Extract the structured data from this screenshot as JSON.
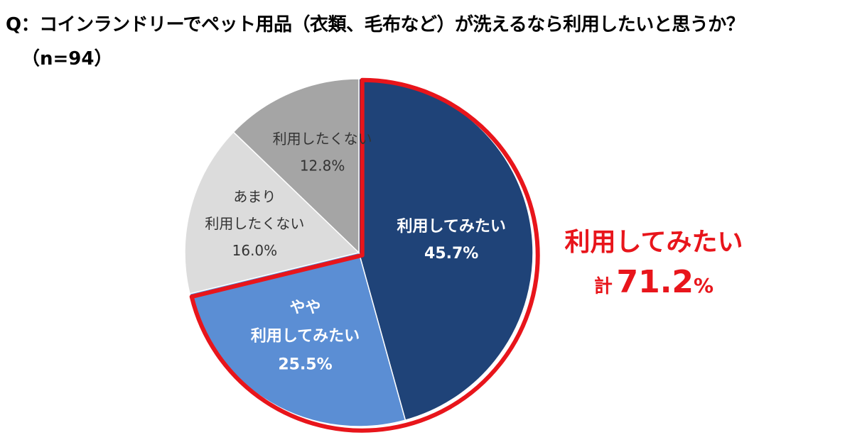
{
  "title": "Q：コインランドリーでペット用品（衣類、毛布など）が洗えるなら利用したいと思うか？",
  "subtitle": "（n=94）",
  "chart_data": {
    "type": "pie",
    "start_angle_deg": 0,
    "direction": "clockwise",
    "slices": [
      {
        "label_lines": [
          "利用してみたい"
        ],
        "value_text": "45.7%",
        "value": 45.7,
        "color": "#1f4378",
        "text_color": "#ffffff",
        "bold": true
      },
      {
        "label_lines": [
          "やや",
          "利用してみたい"
        ],
        "value_text": "25.5%",
        "value": 25.5,
        "color": "#5b8ed4",
        "text_color": "#ffffff",
        "bold": true
      },
      {
        "label_lines": [
          "あまり",
          "利用したくない"
        ],
        "value_text": "16.0%",
        "value": 16.0,
        "color": "#dcdcdc",
        "text_color": "#333333",
        "bold": false
      },
      {
        "label_lines": [
          "利用したくない"
        ],
        "value_text": "12.8%",
        "value": 12.8,
        "color": "#a5a5a5",
        "text_color": "#333333",
        "bold": false
      }
    ],
    "highlight": {
      "slices": [
        0,
        1
      ],
      "color": "#e8151b"
    }
  },
  "total": {
    "label": "利用してみたい",
    "prefix": "計",
    "value": "71.2",
    "unit": "%"
  }
}
